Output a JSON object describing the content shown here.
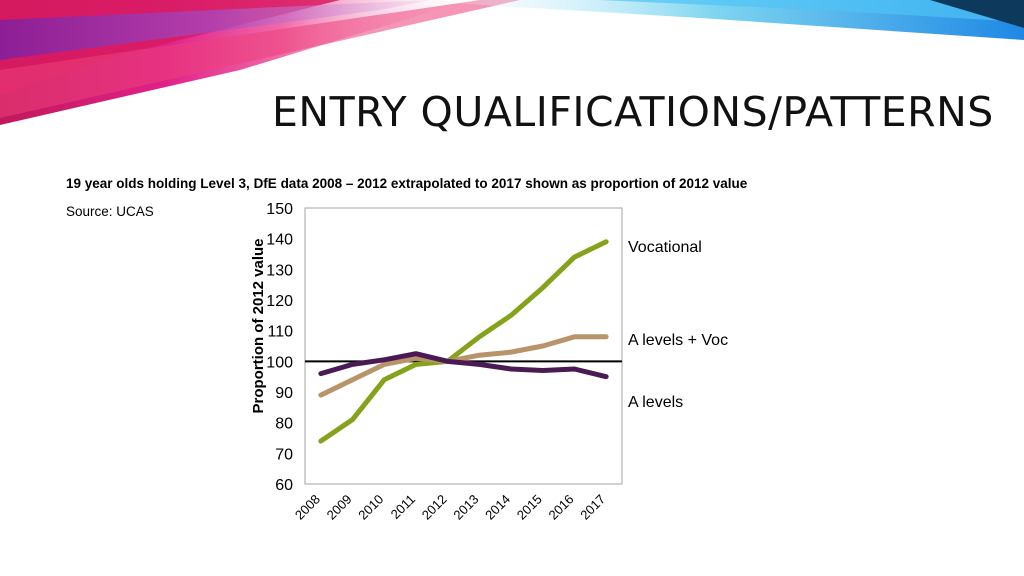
{
  "slide": {
    "title": "ENTRY QUALIFICATIONS/PATTERNS",
    "subtitle": "19 year olds holding Level 3, DfE data 2008 – 2012 extrapolated to 2017 shown as proportion of 2012 value",
    "source": "Source: UCAS"
  },
  "colors": {
    "vocational": "#84A31A",
    "alevels_voc": "#B89468",
    "alevels": "#4A1A55",
    "reference_line": "#000000"
  },
  "chart_data": {
    "type": "line",
    "x": [
      "2008",
      "2009",
      "2010",
      "2011",
      "2012",
      "2013",
      "2014",
      "2015",
      "2016",
      "2017"
    ],
    "ylabel": "Proportion of 2012 value",
    "xlabel": "",
    "ylim": [
      60,
      150
    ],
    "yticks": [
      "60",
      "70",
      "80",
      "90",
      "100",
      "110",
      "120",
      "130",
      "140",
      "150"
    ],
    "reference_line": 100,
    "grid": false,
    "legend": "right, labels beside each line",
    "series": [
      {
        "name": "Vocational",
        "color": "#84A31A",
        "values": [
          74,
          81,
          94,
          99,
          100,
          108,
          115,
          124,
          134,
          139
        ]
      },
      {
        "name": "A levels + Voc",
        "color": "#B89468",
        "values": [
          89,
          94,
          99,
          101,
          100,
          102,
          103,
          105,
          108,
          108
        ]
      },
      {
        "name": "A levels",
        "color": "#4A1A55",
        "values": [
          96,
          99,
          100.5,
          102.5,
          100,
          99,
          97.5,
          97,
          97.5,
          95
        ]
      }
    ]
  }
}
